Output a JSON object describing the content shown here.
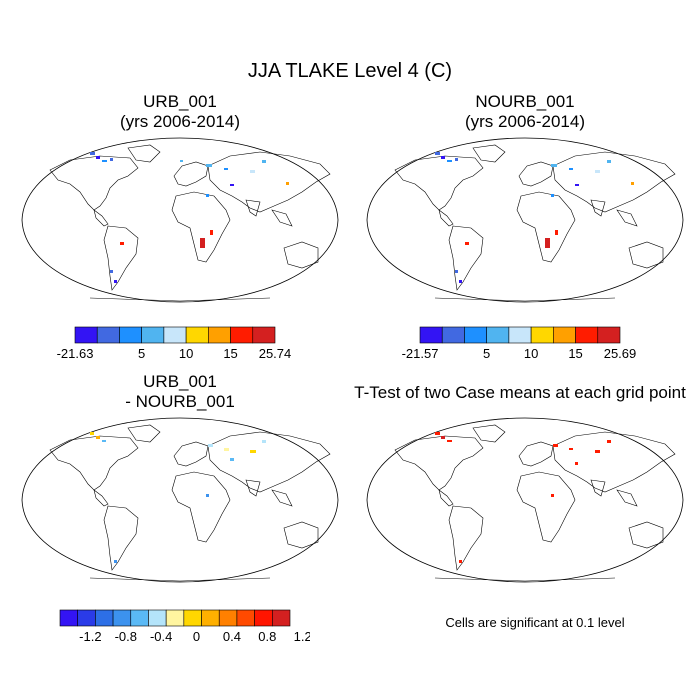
{
  "figure": {
    "title": "JJA TLAKE Level 4 (C)"
  },
  "panels": [
    {
      "id": "urb",
      "title_line1": "URB_001",
      "title_line2": "(yrs 2006-2014)",
      "colorbar": {
        "colors": [
          "#3314f4",
          "#4169e1",
          "#1e90ff",
          "#50b4f0",
          "#c8e6fa",
          "#ffd700",
          "#ffa000",
          "#ff1c00",
          "#d42020"
        ],
        "labels": [
          "-21.63",
          "5",
          "10",
          "15",
          "25.74"
        ]
      }
    },
    {
      "id": "nourb",
      "title_line1": "NOURB_001",
      "title_line2": "(yrs 2006-2014)",
      "colorbar": {
        "colors": [
          "#3314f4",
          "#4169e1",
          "#1e90ff",
          "#50b4f0",
          "#c8e6fa",
          "#ffd700",
          "#ffa000",
          "#ff1c00",
          "#d42020"
        ],
        "labels": [
          "-21.57",
          "5",
          "10",
          "15",
          "25.69"
        ]
      }
    },
    {
      "id": "diff",
      "title_line1": "URB_001",
      "title_line2": "- NOURB_001",
      "colorbar": {
        "colors": [
          "#3314f4",
          "#2a3be8",
          "#2d6fe6",
          "#3c92ee",
          "#5ab9f5",
          "#b4e4fa",
          "#fff5a0",
          "#ffd700",
          "#ffb000",
          "#ff8000",
          "#ff4a00",
          "#ff1500",
          "#d42020"
        ],
        "labels": [
          "-1.2",
          "-0.8",
          "-0.4",
          "0",
          "0.4",
          "0.8",
          "1.2"
        ]
      }
    },
    {
      "id": "ttest",
      "title_line1": "T-Test of two Case means at each grid point",
      "title_line2": "",
      "note": "Cells are significant at 0.1 level"
    }
  ]
}
